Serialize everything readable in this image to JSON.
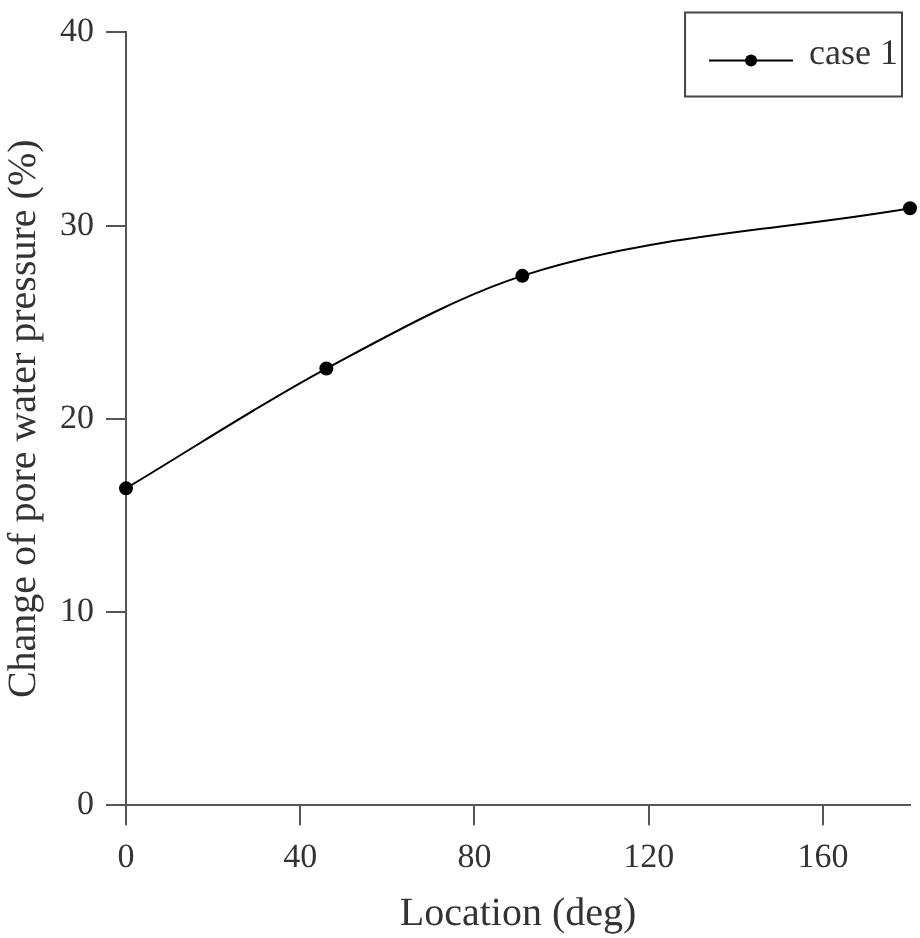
{
  "chart_data": {
    "type": "line",
    "xlabel": "Location (deg)",
    "ylabel": "Change of pore water pressure (%)",
    "x": [
      0,
      46,
      91,
      180
    ],
    "series": [
      {
        "name": "case 1",
        "color": "#000000",
        "values": [
          16.4,
          22.6,
          27.4,
          30.9
        ]
      }
    ],
    "xlim": [
      0,
      180
    ],
    "xticks": [
      0,
      40,
      80,
      120,
      160
    ],
    "ylim": [
      0,
      40
    ],
    "yticks": [
      0,
      10,
      20,
      30,
      40
    ],
    "grid": false,
    "legend": "top right",
    "marker": "circle",
    "line_style": "solid"
  }
}
